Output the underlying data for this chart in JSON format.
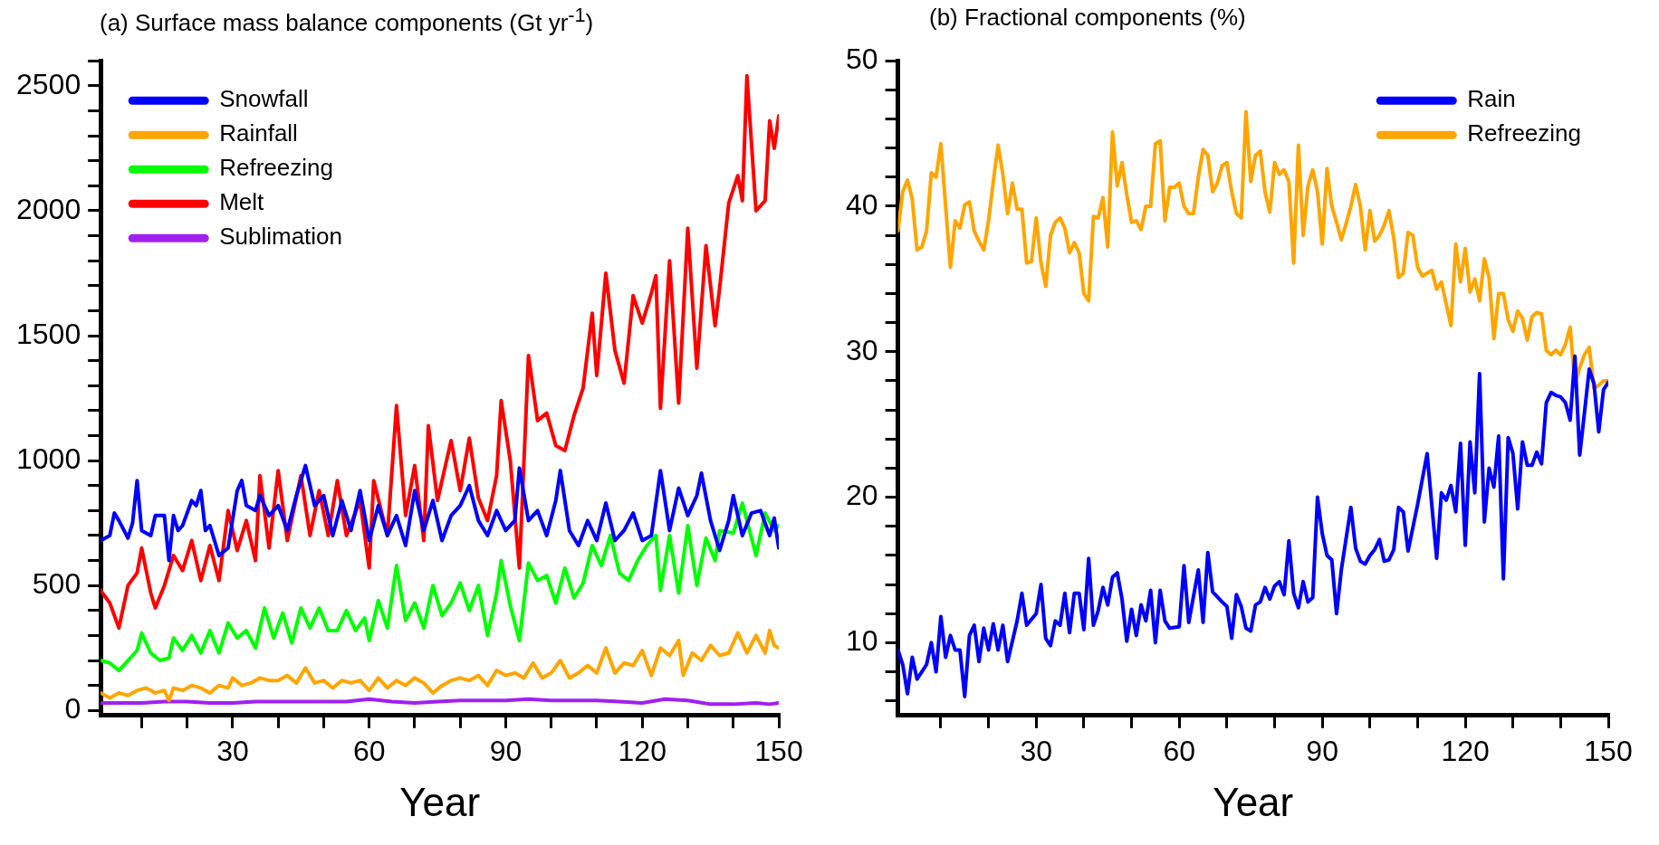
{
  "chart_data": [
    {
      "type": "line",
      "title": "(a) Surface mass balance components (Gt yr$^{-1}$)",
      "xlabel": "Year",
      "xlim": [
        1,
        150
      ],
      "xticks": [
        {
          "value": 10,
          "label": null
        },
        {
          "value": 20,
          "label": null
        },
        30,
        {
          "value": 40,
          "label": null
        },
        {
          "value": 50,
          "label": null
        },
        60,
        {
          "value": 70,
          "label": null
        },
        {
          "value": 80,
          "label": null
        },
        90,
        {
          "value": 100,
          "label": null
        },
        {
          "value": 110,
          "label": null
        },
        120,
        {
          "value": 130,
          "label": null
        },
        {
          "value": 140,
          "label": null
        },
        150
      ],
      "ylim": [
        -20,
        2600
      ],
      "yticks": [
        0,
        {
          "value": 100,
          "label": null
        },
        {
          "value": 200,
          "label": null
        },
        {
          "value": 300,
          "label": null
        },
        {
          "value": 400,
          "label": null
        },
        500,
        {
          "value": 600,
          "label": null
        },
        {
          "value": 700,
          "label": null
        },
        {
          "value": 800,
          "label": null
        },
        {
          "value": 900,
          "label": null
        },
        1000,
        {
          "value": 1100,
          "label": null
        },
        {
          "value": 1200,
          "label": null
        },
        {
          "value": 1300,
          "label": null
        },
        {
          "value": 1400,
          "label": null
        },
        1500,
        {
          "value": 1600,
          "label": null
        },
        {
          "value": 1700,
          "label": null
        },
        {
          "value": 1800,
          "label": null
        },
        {
          "value": 1900,
          "label": null
        },
        2000,
        {
          "value": 2100,
          "label": null
        },
        {
          "value": 2200,
          "label": null
        },
        {
          "value": 2300,
          "label": null
        },
        {
          "value": 2400,
          "label": null
        },
        2500,
        {
          "value": 2600,
          "label": null
        }
      ],
      "grid": false,
      "legend": "top left",
      "marker": "none",
      "line_style": "solid",
      "series": [
        {
          "name": "Snowfall",
          "color": "#0000ff",
          "x": [
            1,
            3,
            4,
            5,
            7,
            8,
            9,
            10,
            12,
            13,
            15,
            16,
            17,
            18,
            19,
            21,
            22,
            23,
            24,
            25,
            27,
            29,
            31,
            32,
            33,
            35,
            36,
            38,
            40,
            42,
            44,
            46,
            48,
            50,
            52,
            54,
            56,
            58,
            60,
            62,
            64,
            66,
            68,
            70,
            72,
            74,
            76,
            78,
            80,
            82,
            84,
            86,
            88,
            90,
            92,
            93,
            95,
            97,
            99,
            101,
            102,
            104,
            106,
            108,
            110,
            112,
            114,
            116,
            118,
            120,
            122,
            124,
            126,
            128,
            130,
            132,
            133,
            135,
            137,
            139,
            140,
            142,
            144,
            146,
            148,
            149,
            150
          ],
          "values": [
            680,
            700,
            790,
            760,
            690,
            750,
            920,
            720,
            700,
            780,
            780,
            600,
            780,
            720,
            740,
            840,
            820,
            880,
            720,
            740,
            620,
            650,
            880,
            920,
            820,
            800,
            860,
            780,
            820,
            720,
            860,
            980,
            820,
            860,
            700,
            840,
            720,
            880,
            680,
            820,
            700,
            780,
            660,
            880,
            720,
            840,
            680,
            780,
            820,
            900,
            760,
            700,
            800,
            720,
            760,
            970,
            760,
            800,
            700,
            840,
            960,
            720,
            660,
            760,
            680,
            830,
            680,
            720,
            790,
            680,
            700,
            960,
            720,
            890,
            780,
            860,
            950,
            760,
            640,
            760,
            860,
            700,
            790,
            800,
            700,
            770,
            650
          ]
        },
        {
          "name": "Rainfall",
          "color": "#ffa500",
          "x": [
            1,
            3,
            5,
            7,
            9,
            11,
            13,
            15,
            16,
            17,
            19,
            21,
            23,
            25,
            27,
            29,
            30,
            32,
            34,
            36,
            38,
            40,
            42,
            44,
            46,
            48,
            50,
            52,
            54,
            56,
            58,
            60,
            62,
            64,
            66,
            68,
            70,
            72,
            74,
            76,
            78,
            80,
            82,
            84,
            86,
            88,
            90,
            92,
            94,
            96,
            98,
            100,
            102,
            104,
            106,
            108,
            110,
            112,
            114,
            116,
            118,
            120,
            122,
            124,
            126,
            128,
            129,
            131,
            133,
            135,
            137,
            139,
            141,
            143,
            145,
            147,
            148,
            149,
            150
          ],
          "values": [
            70,
            50,
            70,
            60,
            80,
            90,
            70,
            80,
            40,
            90,
            80,
            100,
            90,
            70,
            100,
            90,
            130,
            100,
            110,
            130,
            120,
            120,
            140,
            110,
            170,
            110,
            120,
            90,
            120,
            110,
            120,
            80,
            130,
            90,
            120,
            100,
            130,
            110,
            70,
            100,
            120,
            130,
            120,
            140,
            100,
            160,
            140,
            150,
            130,
            190,
            130,
            150,
            200,
            130,
            150,
            180,
            150,
            250,
            150,
            190,
            180,
            240,
            140,
            250,
            220,
            280,
            140,
            230,
            200,
            260,
            220,
            230,
            310,
            230,
            300,
            230,
            320,
            260,
            250
          ]
        },
        {
          "name": "Refreezing",
          "color": "#00ff00",
          "x": [
            1,
            3,
            5,
            7,
            9,
            10,
            12,
            14,
            16,
            17,
            19,
            21,
            23,
            25,
            27,
            29,
            31,
            33,
            35,
            37,
            39,
            41,
            43,
            45,
            47,
            49,
            51,
            53,
            55,
            57,
            59,
            60,
            62,
            64,
            66,
            68,
            70,
            72,
            74,
            76,
            78,
            80,
            82,
            84,
            86,
            88,
            89,
            91,
            93,
            95,
            97,
            99,
            101,
            103,
            105,
            107,
            109,
            111,
            113,
            115,
            117,
            119,
            121,
            123,
            124,
            126,
            128,
            130,
            132,
            134,
            136,
            137,
            140,
            142,
            145,
            147,
            149,
            150
          ],
          "values": [
            200,
            190,
            160,
            200,
            240,
            310,
            230,
            200,
            210,
            290,
            240,
            300,
            230,
            320,
            230,
            350,
            290,
            320,
            250,
            410,
            290,
            390,
            270,
            410,
            330,
            410,
            320,
            320,
            400,
            320,
            370,
            280,
            440,
            330,
            580,
            360,
            430,
            330,
            500,
            380,
            430,
            510,
            400,
            500,
            300,
            470,
            600,
            420,
            280,
            590,
            520,
            540,
            430,
            570,
            450,
            510,
            660,
            580,
            700,
            550,
            520,
            600,
            660,
            700,
            480,
            700,
            470,
            740,
            500,
            690,
            600,
            720,
            710,
            830,
            620,
            790,
            720,
            740
          ]
        },
        {
          "name": "Melt",
          "color": "#ff0000",
          "x": [
            1,
            3,
            5,
            7,
            9,
            10,
            12,
            13,
            15,
            17,
            19,
            21,
            23,
            25,
            27,
            29,
            31,
            33,
            35,
            36,
            38,
            40,
            42,
            45,
            47,
            49,
            51,
            53,
            55,
            58,
            60,
            61,
            64,
            66,
            68,
            70,
            72,
            73,
            75,
            78,
            80,
            82,
            84,
            86,
            88,
            89,
            91,
            93,
            95,
            97,
            99,
            101,
            103,
            105,
            107,
            109,
            110,
            112,
            114,
            116,
            118,
            120,
            122,
            123,
            124,
            126,
            128,
            130,
            132,
            134,
            136,
            137,
            139,
            141,
            142,
            143,
            145,
            147,
            148,
            149,
            150
          ],
          "values": [
            480,
            430,
            330,
            500,
            550,
            650,
            470,
            410,
            500,
            620,
            560,
            680,
            520,
            660,
            520,
            800,
            640,
            760,
            600,
            940,
            650,
            960,
            680,
            940,
            700,
            880,
            700,
            920,
            700,
            840,
            570,
            920,
            700,
            1220,
            780,
            980,
            680,
            1140,
            840,
            1080,
            880,
            1090,
            850,
            760,
            940,
            1240,
            1000,
            570,
            1420,
            1160,
            1190,
            1060,
            1040,
            1180,
            1290,
            1590,
            1340,
            1750,
            1440,
            1310,
            1660,
            1550,
            1670,
            1740,
            1210,
            1800,
            1230,
            1930,
            1370,
            1860,
            1540,
            1690,
            2030,
            2140,
            2040,
            2540,
            2000,
            2040,
            2360,
            2250,
            2380
          ]
        },
        {
          "name": "Sublimation",
          "color": "#a020f0",
          "x": [
            1,
            5,
            10,
            15,
            20,
            25,
            30,
            35,
            40,
            45,
            50,
            55,
            60,
            65,
            70,
            75,
            80,
            85,
            90,
            95,
            100,
            105,
            110,
            115,
            120,
            125,
            130,
            135,
            138,
            140,
            145,
            148,
            150
          ],
          "values": [
            30,
            30,
            30,
            35,
            35,
            30,
            30,
            35,
            35,
            35,
            35,
            35,
            45,
            35,
            30,
            35,
            40,
            40,
            40,
            45,
            40,
            40,
            40,
            35,
            30,
            45,
            40,
            25,
            25,
            25,
            30,
            25,
            30
          ]
        }
      ]
    },
    {
      "type": "line",
      "title": "(b) Fractional components (%)",
      "xlabel": "Year",
      "xlim": [
        1,
        150
      ],
      "xticks": [
        {
          "value": 10,
          "label": null
        },
        {
          "value": 20,
          "label": null
        },
        30,
        {
          "value": 40,
          "label": null
        },
        {
          "value": 50,
          "label": null
        },
        60,
        {
          "value": 70,
          "label": null
        },
        {
          "value": 80,
          "label": null
        },
        90,
        {
          "value": 100,
          "label": null
        },
        {
          "value": 110,
          "label": null
        },
        120,
        {
          "value": 130,
          "label": null
        },
        {
          "value": 140,
          "label": null
        },
        150
      ],
      "ylim": [
        5,
        50
      ],
      "yticks": [
        {
          "value": 6,
          "label": null
        },
        {
          "value": 8,
          "label": null
        },
        10,
        {
          "value": 12,
          "label": null
        },
        {
          "value": 14,
          "label": null
        },
        {
          "value": 16,
          "label": null
        },
        {
          "value": 18,
          "label": null
        },
        20,
        {
          "value": 22,
          "label": null
        },
        {
          "value": 24,
          "label": null
        },
        {
          "value": 26,
          "label": null
        },
        {
          "value": 28,
          "label": null
        },
        30,
        {
          "value": 32,
          "label": null
        },
        {
          "value": 34,
          "label": null
        },
        {
          "value": 36,
          "label": null
        },
        {
          "value": 38,
          "label": null
        },
        40,
        {
          "value": 42,
          "label": null
        },
        {
          "value": 44,
          "label": null
        },
        {
          "value": 46,
          "label": null
        },
        {
          "value": 48,
          "label": null
        },
        50
      ],
      "grid": false,
      "legend": "top right",
      "marker": "none",
      "line_style": "solid",
      "series": [
        {
          "name": "Rain",
          "color": "#0000ff",
          "x": [
            1,
            2,
            3,
            4,
            5,
            6,
            7,
            8,
            9,
            10,
            11,
            12,
            13,
            14,
            15,
            16,
            17,
            18,
            19,
            20,
            21,
            22,
            23,
            24,
            26,
            27,
            28,
            30,
            31,
            32,
            33,
            34,
            35,
            36,
            37,
            38,
            39,
            40,
            41,
            42,
            43,
            44,
            45,
            46,
            47,
            48,
            49,
            50,
            51,
            52,
            53,
            54,
            55,
            56,
            57,
            58,
            60,
            61,
            62,
            64,
            65,
            66,
            67,
            69,
            70,
            71,
            72,
            73,
            74,
            75,
            76,
            77,
            78,
            79,
            80,
            81,
            82,
            83,
            84,
            85,
            86,
            87,
            88,
            89,
            90,
            91,
            92,
            93,
            94,
            96,
            97,
            98,
            99,
            100,
            101,
            102,
            103,
            104,
            105,
            106,
            107,
            108,
            110,
            112,
            114,
            115,
            116,
            117,
            118,
            119,
            120,
            121,
            122,
            123,
            124,
            125,
            126,
            127,
            128,
            129,
            130,
            131,
            132,
            133,
            134,
            135,
            136,
            137,
            138,
            139,
            140,
            141,
            142,
            143,
            144,
            145,
            146,
            147,
            148,
            149,
            150
          ],
          "values": [
            9.5,
            8.5,
            6.5,
            9,
            7.5,
            8,
            8.5,
            10,
            8,
            11.8,
            9,
            10.5,
            9.5,
            9.5,
            6.3,
            10.5,
            11.2,
            8.7,
            11,
            9.5,
            11.3,
            9.5,
            11.2,
            8.7,
            11.5,
            13.4,
            11.2,
            12,
            14,
            10.3,
            9.8,
            11.5,
            11.2,
            13.4,
            10.7,
            13.4,
            13.4,
            10.9,
            15.8,
            11.2,
            12.2,
            13.8,
            12.6,
            14.5,
            14.8,
            13,
            10.1,
            12.3,
            10.5,
            12.6,
            11.5,
            13.6,
            10,
            13.6,
            11.5,
            11,
            11.1,
            15.3,
            11.4,
            15,
            11.4,
            16.2,
            13.5,
            12.8,
            12.5,
            10.3,
            13.3,
            12.5,
            11,
            10.8,
            12.6,
            12.8,
            13.8,
            13,
            13.9,
            14.2,
            13.3,
            17,
            13.4,
            12.4,
            14.2,
            12.8,
            13.1,
            20,
            17.5,
            16,
            15.7,
            12,
            15,
            19.3,
            16.5,
            15.6,
            15.4,
            16,
            16.4,
            17.1,
            15.6,
            15.7,
            16.4,
            19.3,
            19,
            16.3,
            19.5,
            23,
            15.8,
            20.3,
            19.8,
            20.8,
            19,
            23.7,
            16.7,
            23.8,
            20.3,
            28.5,
            18.3,
            22,
            20.7,
            24.2,
            14.4,
            24.1,
            23,
            19.2,
            23.8,
            22.2,
            22.2,
            23.1,
            22.3,
            26.5,
            27.2,
            27,
            26.9,
            26.5,
            25.3,
            29.7,
            22.9,
            25.8,
            28.8,
            27.8,
            24.5,
            27.4,
            27.9
          ]
        },
        {
          "name": "Refreezing",
          "color": "#ffa500",
          "x": [
            1,
            2,
            3,
            4,
            5,
            6,
            7,
            8,
            9,
            10,
            11,
            12,
            13,
            14,
            15,
            16,
            17,
            18,
            19,
            20,
            21,
            22,
            23,
            24,
            25,
            26,
            27,
            28,
            29,
            30,
            31,
            32,
            33,
            34,
            35,
            36,
            37,
            38,
            39,
            40,
            41,
            42,
            43,
            44,
            45,
            46,
            47,
            48,
            49,
            50,
            51,
            52,
            53,
            54,
            55,
            56,
            57,
            58,
            59,
            60,
            61,
            62,
            63,
            64,
            65,
            66,
            67,
            68,
            69,
            70,
            71,
            72,
            73,
            74,
            75,
            76,
            77,
            78,
            79,
            80,
            81,
            82,
            83,
            84,
            85,
            86,
            87,
            88,
            89,
            90,
            91,
            92,
            93,
            94,
            95,
            96,
            97,
            98,
            99,
            100,
            101,
            102,
            103,
            104,
            105,
            106,
            107,
            108,
            109,
            110,
            111,
            112,
            113,
            114,
            115,
            116,
            117,
            118,
            119,
            120,
            121,
            122,
            123,
            124,
            125,
            126,
            127,
            128,
            129,
            130,
            131,
            132,
            133,
            134,
            135,
            136,
            137,
            138,
            139,
            140,
            141,
            142,
            143,
            144,
            145,
            146,
            147,
            148,
            149,
            150
          ],
          "values": [
            38.3,
            41,
            41.8,
            40.5,
            37,
            37.2,
            38.3,
            42.3,
            42,
            44.3,
            40,
            35.8,
            39,
            38.5,
            40.1,
            40.3,
            38.3,
            37.6,
            37,
            39,
            41.7,
            44.2,
            42.2,
            39.5,
            41.6,
            39.8,
            39.8,
            36.1,
            36.2,
            39.2,
            36.1,
            34.5,
            38,
            38.9,
            39.2,
            38.5,
            36.8,
            37.5,
            36.8,
            34,
            33.5,
            39.3,
            39.2,
            40.6,
            37.2,
            45.1,
            41.4,
            43,
            40.8,
            38.9,
            39,
            38.4,
            40,
            40,
            44.3,
            44.5,
            39,
            41.3,
            41.3,
            41.6,
            40,
            39.5,
            39.5,
            42,
            43.9,
            43.5,
            41,
            41.6,
            42.8,
            43,
            41,
            39.5,
            39.2,
            46.5,
            41.7,
            43.5,
            43.8,
            41,
            39.6,
            43,
            42.2,
            42.5,
            41.7,
            36.1,
            44.2,
            38,
            41.4,
            42.5,
            41,
            37.4,
            42.6,
            40,
            38.9,
            37.7,
            38.8,
            40,
            41.5,
            40,
            37,
            39.7,
            37.6,
            38,
            38.7,
            39.7,
            37.8,
            35.1,
            35.4,
            38.2,
            38,
            35.8,
            35.2,
            35.4,
            35.6,
            34.3,
            34.8,
            33.3,
            31.8,
            37.4,
            34.8,
            37.1,
            34.1,
            35,
            33.5,
            36.4,
            35.1,
            30.9,
            34,
            34,
            32.2,
            31.4,
            32.8,
            32.3,
            30.8,
            32.4,
            32.7,
            32.6,
            30.1,
            29.8,
            30.1,
            29.8,
            30.5,
            31.7,
            27.8,
            28.9,
            29.8,
            30.3,
            27.5,
            27.7,
            28,
            28
          ]
        }
      ]
    }
  ]
}
